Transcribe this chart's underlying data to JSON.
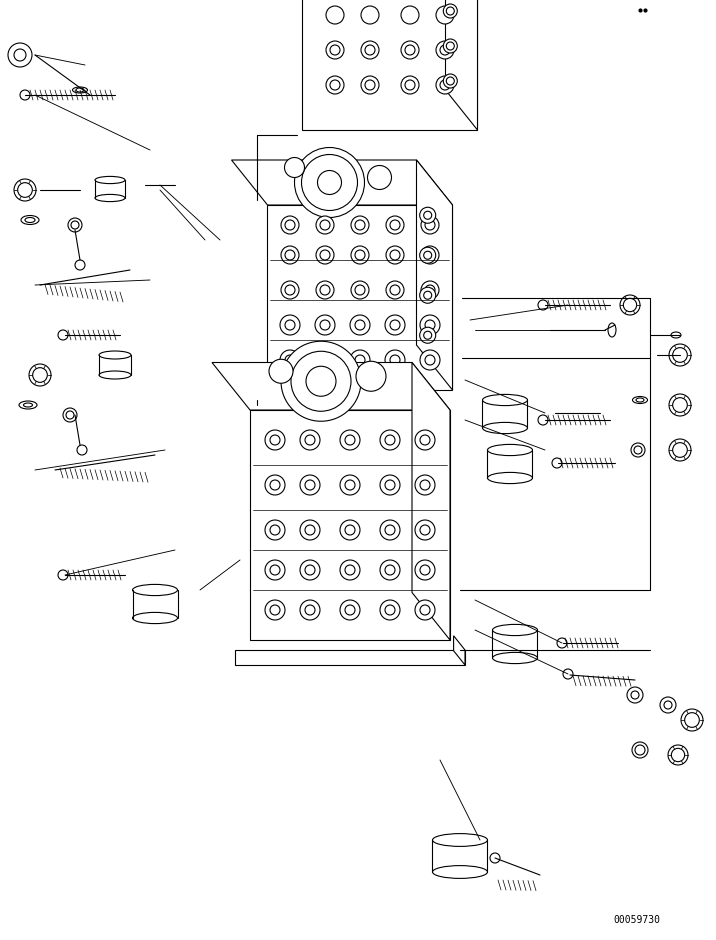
{
  "background_color": "#ffffff",
  "line_color": "#000000",
  "line_width": 0.8,
  "part_number": "00059730",
  "figsize": [
    7.16,
    9.4
  ],
  "dpi": 100
}
